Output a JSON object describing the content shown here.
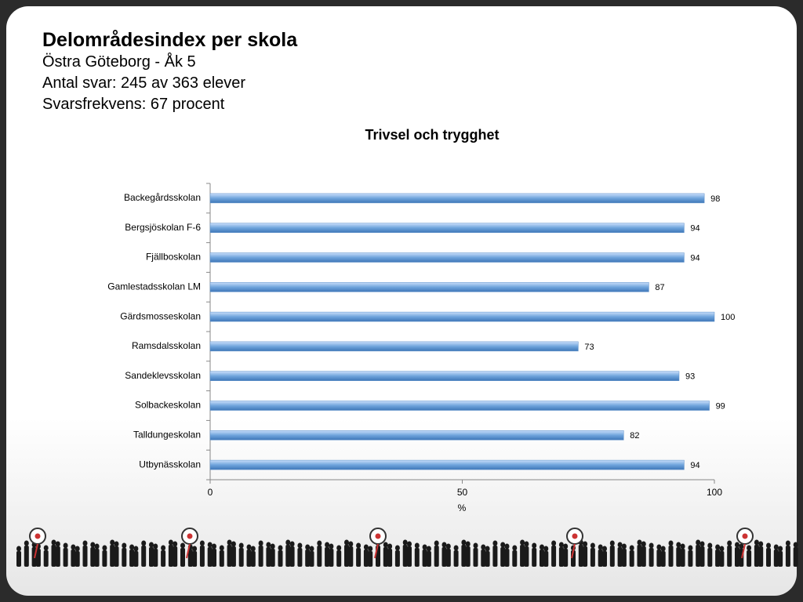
{
  "header": {
    "title": "Delområdesindex per skola",
    "lines": [
      "Östra Göteborg - Åk 5",
      "Antal svar: 245 av 363 elever",
      "Svarsfrekvens: 67 procent"
    ]
  },
  "chart_data": {
    "type": "bar",
    "orientation": "horizontal",
    "title": "Trivsel och trygghet",
    "x_label": "%",
    "categories": [
      "Backegårdsskolan",
      "Bergsjöskolan F-6",
      "Fjällboskolan",
      "Gamlestadsskolan LM",
      "Gärdsmosseskolan",
      "Ramsdalsskolan",
      "Sandeklevsskolan",
      "Solbackeskolan",
      "Talldungeskolan",
      "Utbynässkolan"
    ],
    "values": [
      98,
      94,
      94,
      87,
      100,
      73,
      93,
      99,
      82,
      94
    ],
    "color": "#6fa4dc",
    "xlim": [
      0,
      100
    ],
    "xticks": [
      0,
      50,
      100
    ]
  }
}
